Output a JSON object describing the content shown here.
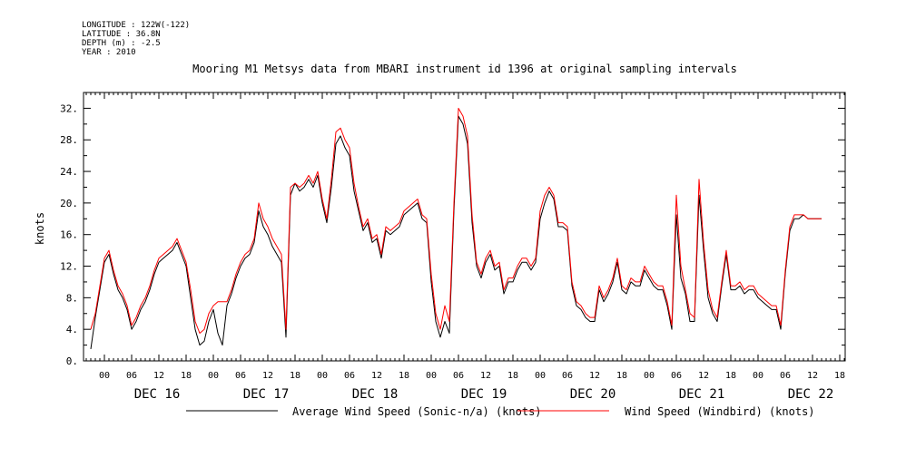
{
  "header": {
    "longitude": "LONGITUDE : 122W(-122)",
    "latitude": "LATITUDE : 36.8N",
    "depth": "DEPTH (m) : -2.5",
    "year": "YEAR : 2010"
  },
  "chart_data": {
    "type": "line",
    "title": "Mooring M1 Metsys data from MBARI instrument id 1396 at original sampling intervals",
    "xlabel": "",
    "ylabel": "knots",
    "ylim": [
      0,
      34
    ],
    "yticks": [
      "0.",
      "4.",
      "8.",
      "12.",
      "16.",
      "20.",
      "24.",
      "28.",
      "32."
    ],
    "hour_ticks": [
      "00",
      "06",
      "12",
      "18",
      "00",
      "06",
      "12",
      "18",
      "00",
      "06",
      "12",
      "18",
      "00",
      "06",
      "12",
      "18",
      "00",
      "06",
      "12",
      "18",
      "00",
      "06",
      "12",
      "18",
      "00",
      "06",
      "12",
      "18"
    ],
    "day_labels": [
      "DEC 16",
      "DEC 17",
      "DEC 18",
      "DEC 19",
      "DEC 20",
      "DEC 21",
      "DEC 22"
    ],
    "x_unit": "hours since 2010-12-15 21:00",
    "xlim": [
      0,
      162
    ],
    "grid": false,
    "legend_position": "bottom",
    "series": [
      {
        "name": "Average Wind Speed (Sonic-n/a) (knots)",
        "color": "#000000",
        "x": [
          0,
          1,
          2,
          3,
          4,
          5,
          6,
          7,
          8,
          9,
          10,
          11,
          12,
          13,
          14,
          15,
          16,
          17,
          18,
          19,
          20,
          21,
          22,
          23,
          24,
          25,
          26,
          27,
          28,
          29,
          30,
          31,
          32,
          33,
          34,
          35,
          36,
          37,
          38,
          39,
          40,
          41,
          42,
          43,
          44,
          45,
          46,
          47,
          48,
          49,
          50,
          51,
          52,
          53,
          54,
          55,
          56,
          57,
          58,
          59,
          60,
          61,
          62,
          63,
          64,
          65,
          66,
          67,
          68,
          69,
          70,
          71,
          72,
          73,
          74,
          75,
          76,
          77,
          78,
          79,
          80,
          81,
          82,
          83,
          84,
          85,
          86,
          87,
          88,
          89,
          90,
          91,
          92,
          93,
          94,
          95,
          96,
          97,
          98,
          99,
          100,
          101,
          102,
          103,
          104,
          105,
          106,
          107,
          108,
          109,
          110,
          111,
          112,
          113,
          114,
          115,
          116,
          117,
          118,
          119,
          120,
          121,
          122,
          123,
          124,
          125,
          126,
          127,
          128,
          129,
          130,
          131,
          132,
          133,
          134,
          135,
          136,
          137,
          138,
          139,
          140,
          141,
          142,
          143,
          144,
          145,
          146,
          147,
          148,
          149,
          150,
          151,
          152,
          153,
          154,
          155,
          156,
          157,
          158,
          159,
          160,
          161
        ],
        "values": [
          1.5,
          5.5,
          9.0,
          12.5,
          13.5,
          11.0,
          9.0,
          8.0,
          6.5,
          4.0,
          5.0,
          6.5,
          7.5,
          9.0,
          11.0,
          12.5,
          13.0,
          13.5,
          14.0,
          15.0,
          13.5,
          12.0,
          8.0,
          4.0,
          2.0,
          2.5,
          5.0,
          6.5,
          3.5,
          2.0,
          7.0,
          8.5,
          10.5,
          12.0,
          13.0,
          13.5,
          15.0,
          19.0,
          17.0,
          16.0,
          14.5,
          13.5,
          12.5,
          3.0,
          21.0,
          22.5,
          21.5,
          22.0,
          23.0,
          22.0,
          23.5,
          20.0,
          17.5,
          22.0,
          27.5,
          28.5,
          27.0,
          26.0,
          21.5,
          19.0,
          16.5,
          17.5,
          15.0,
          15.5,
          13.0,
          16.5,
          16.0,
          16.5,
          17.0,
          18.5,
          19.0,
          19.5,
          20.0,
          18.0,
          17.5,
          10.0,
          5.0,
          3.0,
          5.0,
          3.5,
          19.0,
          31.0,
          30.0,
          27.5,
          17.5,
          12.0,
          10.5,
          12.5,
          13.5,
          11.5,
          12.0,
          8.5,
          10.0,
          10.0,
          11.5,
          12.5,
          12.5,
          11.5,
          12.5,
          18.0,
          20.0,
          21.5,
          20.5,
          17.0,
          17.0,
          16.5,
          9.5,
          7.0,
          6.5,
          5.5,
          5.0,
          5.0,
          9.0,
          7.5,
          8.5,
          10.0,
          12.5,
          9.0,
          8.5,
          10.0,
          9.5,
          9.5,
          11.5,
          10.5,
          9.5,
          9.0,
          9.0,
          7.0,
          4.0,
          18.5,
          10.5,
          8.5,
          5.0,
          5.0,
          21.0,
          14.0,
          8.0,
          6.0,
          5.0,
          9.5,
          13.5,
          9.0,
          9.0,
          9.5,
          8.5,
          9.0,
          9.0,
          8.0,
          7.5,
          7.0,
          6.5,
          6.5,
          4.0,
          11.0,
          16.5,
          18.0,
          18.0,
          18.5,
          18.0,
          18.0,
          18.0,
          18.0
        ]
      },
      {
        "name": "Wind Speed (Windbird) (knots)",
        "color": "#ff0000",
        "x": [
          0,
          1,
          2,
          3,
          4,
          5,
          6,
          7,
          8,
          9,
          10,
          11,
          12,
          13,
          14,
          15,
          16,
          17,
          18,
          19,
          20,
          21,
          22,
          23,
          24,
          25,
          26,
          27,
          28,
          29,
          30,
          31,
          32,
          33,
          34,
          35,
          36,
          37,
          38,
          39,
          40,
          41,
          42,
          43,
          44,
          45,
          46,
          47,
          48,
          49,
          50,
          51,
          52,
          53,
          54,
          55,
          56,
          57,
          58,
          59,
          60,
          61,
          62,
          63,
          64,
          65,
          66,
          67,
          68,
          69,
          70,
          71,
          72,
          73,
          74,
          75,
          76,
          77,
          78,
          79,
          80,
          81,
          82,
          83,
          84,
          85,
          86,
          87,
          88,
          89,
          90,
          91,
          92,
          93,
          94,
          95,
          96,
          97,
          98,
          99,
          100,
          101,
          102,
          103,
          104,
          105,
          106,
          107,
          108,
          109,
          110,
          111,
          112,
          113,
          114,
          115,
          116,
          117,
          118,
          119,
          120,
          121,
          122,
          123,
          124,
          125,
          126,
          127,
          128,
          129,
          130,
          131,
          132,
          133,
          134,
          135,
          136,
          137,
          138,
          139,
          140,
          141,
          142,
          143,
          144,
          145,
          146,
          147,
          148,
          149,
          150,
          151,
          152,
          153,
          154,
          155,
          156,
          157,
          158,
          159,
          160,
          161
        ],
        "values": [
          4.0,
          6.0,
          9.5,
          13.0,
          14.0,
          11.5,
          9.5,
          8.5,
          7.0,
          4.5,
          5.5,
          7.0,
          8.0,
          9.5,
          11.5,
          13.0,
          13.5,
          14.0,
          14.5,
          15.5,
          14.0,
          12.5,
          9.0,
          5.0,
          3.5,
          4.0,
          6.0,
          7.0,
          7.5,
          7.5,
          7.5,
          9.0,
          11.0,
          12.5,
          13.5,
          14.0,
          15.5,
          20.0,
          18.0,
          17.0,
          15.5,
          14.5,
          13.5,
          4.0,
          22.0,
          22.5,
          22.0,
          22.5,
          23.5,
          22.5,
          24.0,
          20.5,
          18.0,
          23.0,
          29.0,
          29.5,
          28.0,
          27.0,
          22.5,
          19.5,
          17.0,
          18.0,
          15.5,
          16.0,
          13.5,
          17.0,
          16.5,
          17.0,
          17.5,
          19.0,
          19.5,
          20.0,
          20.5,
          18.5,
          18.0,
          11.0,
          6.0,
          4.0,
          7.0,
          5.0,
          20.0,
          32.0,
          31.0,
          28.5,
          18.5,
          12.5,
          11.0,
          13.0,
          14.0,
          12.0,
          12.5,
          9.0,
          10.5,
          10.5,
          12.0,
          13.0,
          13.0,
          12.0,
          13.0,
          19.0,
          21.0,
          22.0,
          21.0,
          17.5,
          17.5,
          17.0,
          10.0,
          7.5,
          7.0,
          6.0,
          5.5,
          5.5,
          9.5,
          8.0,
          9.0,
          10.5,
          13.0,
          9.5,
          9.0,
          10.5,
          10.0,
          10.0,
          12.0,
          11.0,
          10.0,
          9.5,
          9.5,
          7.5,
          4.5,
          21.0,
          12.0,
          9.0,
          6.0,
          5.5,
          23.0,
          15.0,
          9.0,
          6.5,
          5.5,
          10.0,
          14.0,
          9.5,
          9.5,
          10.0,
          9.0,
          9.5,
          9.5,
          8.5,
          8.0,
          7.5,
          7.0,
          7.0,
          4.5,
          11.5,
          17.0,
          18.5,
          18.5,
          18.5,
          18.0,
          18.0,
          18.0,
          18.0
        ]
      }
    ]
  }
}
